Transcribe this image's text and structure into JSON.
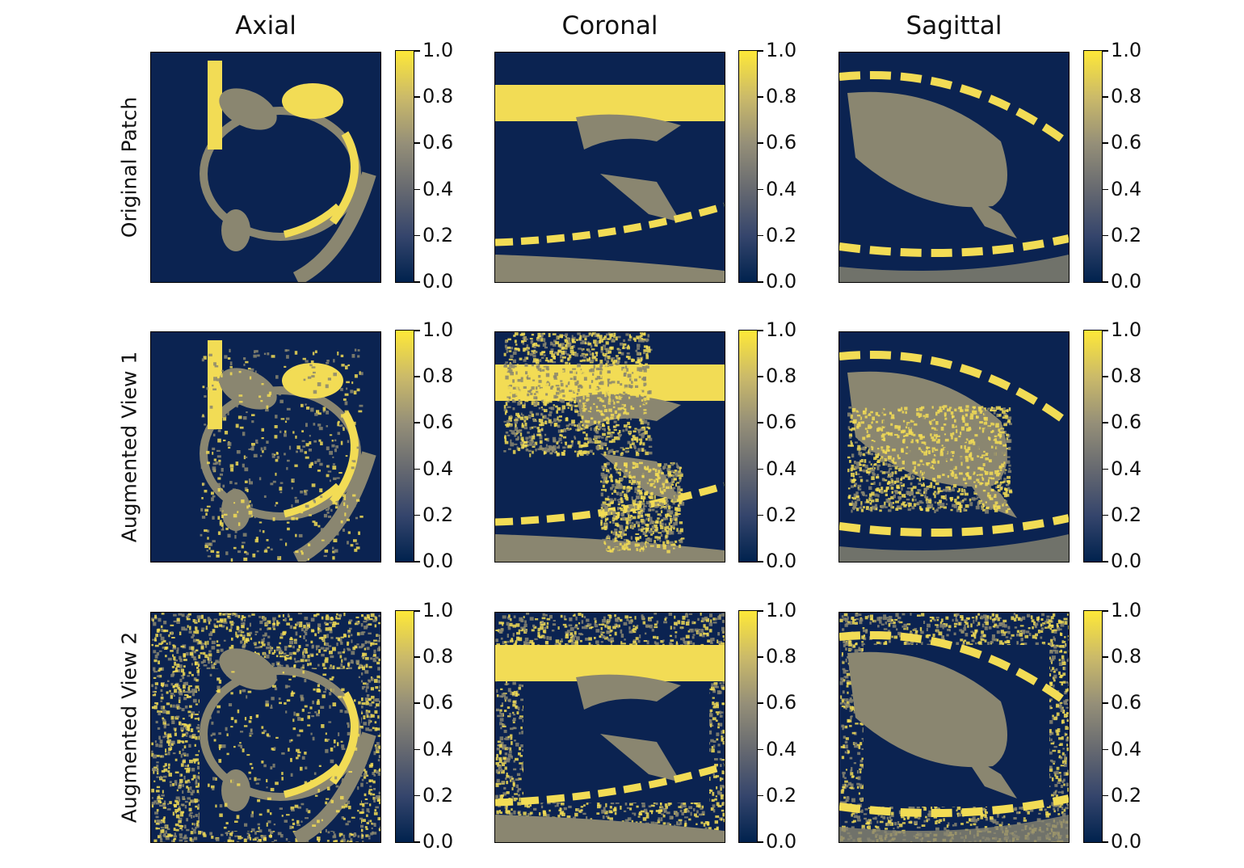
{
  "columns": [
    "Axial",
    "Coronal",
    "Sagittal"
  ],
  "rows": [
    "Original Patch",
    "Augmented View 1",
    "Augmented View 2"
  ],
  "colorbar": {
    "colormap": "cividis",
    "ticks": [
      "0.0",
      "0.2",
      "0.4",
      "0.6",
      "0.8",
      "1.0"
    ],
    "min": 0.0,
    "max": 1.0
  },
  "colors": {
    "low": "#0b2351",
    "mid": "#8a8670",
    "high": "#f2dc55"
  }
}
